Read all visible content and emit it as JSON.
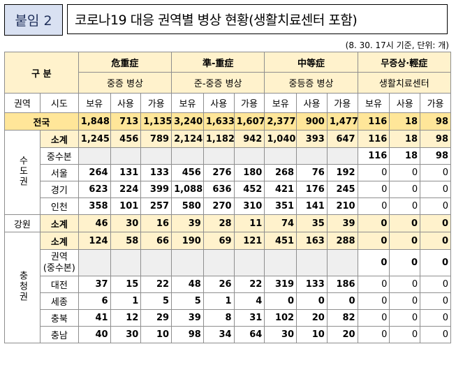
{
  "attachment_label": "붙임 2",
  "title": "코로나19 대응 권역별 병상 현황(생활치료센터 포함)",
  "note": "(8. 30. 17시 기준, 단위: 개)",
  "headers": {
    "gubun": "구 분",
    "groups": [
      "危重症",
      "準-重症",
      "中等症",
      "무증상·輕症"
    ],
    "groups_sub": [
      "중증 병상",
      "준-중증 병상",
      "중등증 병상",
      "생활치료센터"
    ],
    "region": "권역",
    "sido": "시도",
    "cols": [
      "보유",
      "사용",
      "가용"
    ]
  },
  "regions": {
    "sudo": "수도권",
    "gangwon": "강원",
    "chungcheong": "충청권"
  },
  "rows": [
    {
      "label": "전국",
      "vals": [
        "1,848",
        "713",
        "1,135",
        "3,240",
        "1,633",
        "1,607",
        "2,377",
        "900",
        "1,477",
        "116",
        "18",
        "98"
      ]
    },
    {
      "label": "소계",
      "vals": [
        "1,245",
        "456",
        "789",
        "2,124",
        "1,182",
        "942",
        "1,040",
        "393",
        "647",
        "116",
        "18",
        "98"
      ]
    },
    {
      "label": "중수본",
      "vals": [
        "",
        "",
        "",
        "",
        "",
        "",
        "",
        "",
        "",
        "116",
        "18",
        "98"
      ]
    },
    {
      "label": "서울",
      "vals": [
        "264",
        "131",
        "133",
        "456",
        "276",
        "180",
        "268",
        "76",
        "192",
        "0",
        "0",
        "0"
      ]
    },
    {
      "label": "경기",
      "vals": [
        "623",
        "224",
        "399",
        "1,088",
        "636",
        "452",
        "421",
        "176",
        "245",
        "0",
        "0",
        "0"
      ]
    },
    {
      "label": "인천",
      "vals": [
        "358",
        "101",
        "257",
        "580",
        "270",
        "310",
        "351",
        "141",
        "210",
        "0",
        "0",
        "0"
      ]
    },
    {
      "label": "소계",
      "vals": [
        "46",
        "30",
        "16",
        "39",
        "28",
        "11",
        "74",
        "35",
        "39",
        "0",
        "0",
        "0"
      ]
    },
    {
      "label": "소계",
      "vals": [
        "124",
        "58",
        "66",
        "190",
        "69",
        "121",
        "451",
        "163",
        "288",
        "0",
        "0",
        "0"
      ]
    },
    {
      "label": "권역\n(중수본)",
      "label1": "권역",
      "label2": "(중수본)",
      "vals": [
        "",
        "",
        "",
        "",
        "",
        "",
        "",
        "",
        "",
        "0",
        "0",
        "0"
      ]
    },
    {
      "label": "대전",
      "vals": [
        "37",
        "15",
        "22",
        "48",
        "26",
        "22",
        "319",
        "133",
        "186",
        "0",
        "0",
        "0"
      ]
    },
    {
      "label": "세종",
      "vals": [
        "6",
        "1",
        "5",
        "5",
        "1",
        "4",
        "0",
        "0",
        "0",
        "0",
        "0",
        "0"
      ]
    },
    {
      "label": "충북",
      "vals": [
        "41",
        "12",
        "29",
        "39",
        "8",
        "31",
        "102",
        "20",
        "82",
        "0",
        "0",
        "0"
      ]
    },
    {
      "label": "충남",
      "vals": [
        "40",
        "30",
        "10",
        "98",
        "34",
        "64",
        "30",
        "10",
        "20",
        "0",
        "0",
        "0"
      ]
    }
  ]
}
